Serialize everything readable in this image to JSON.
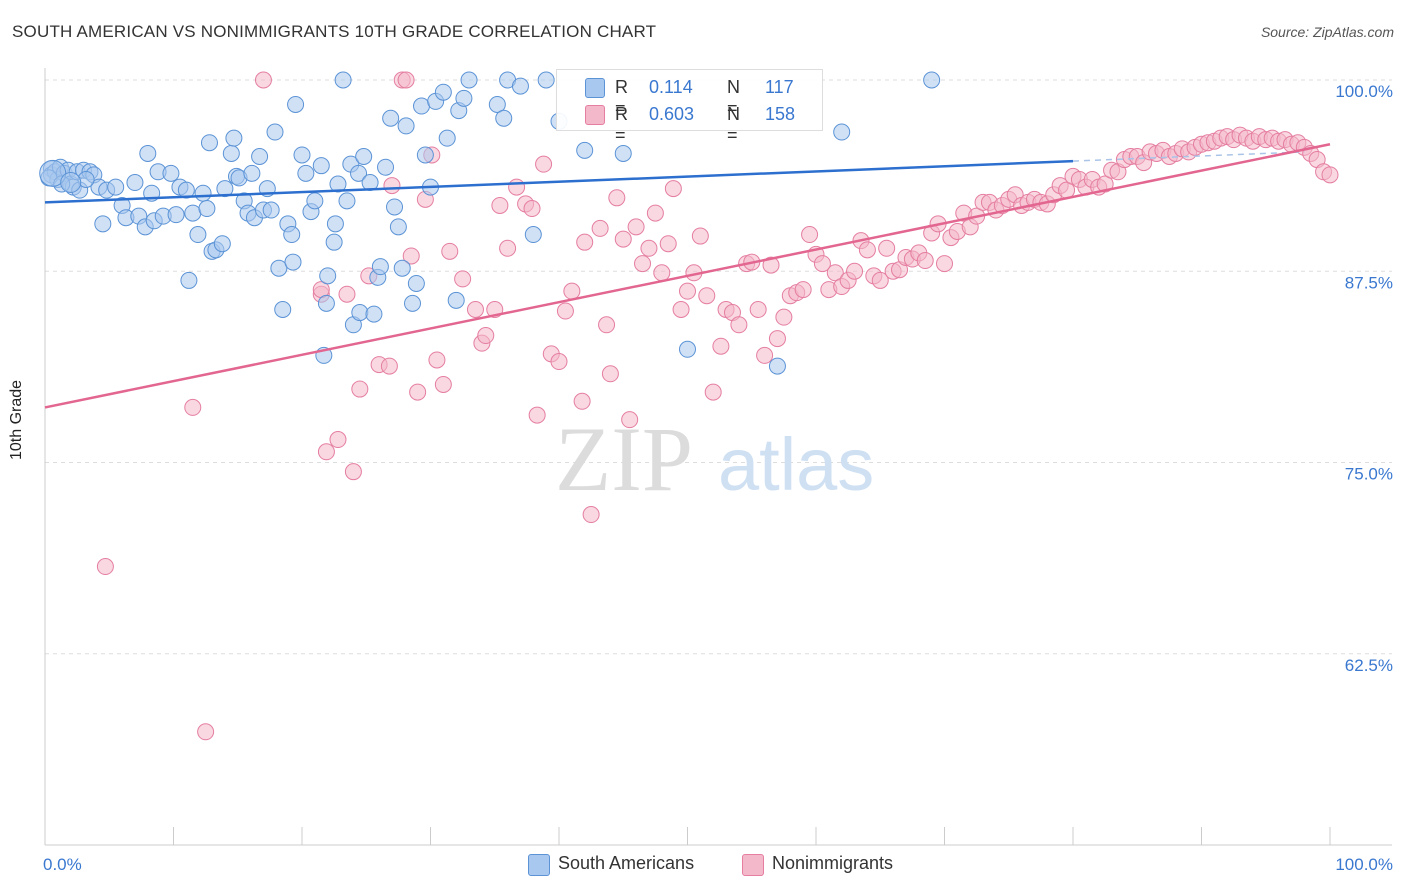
{
  "header": {
    "title": "SOUTH AMERICAN VS NONIMMIGRANTS 10TH GRADE CORRELATION CHART",
    "source": "Source: ZipAtlas.com"
  },
  "watermark": {
    "zip": "ZIP",
    "atlas": "atlas"
  },
  "legend": {
    "rows": [
      {
        "r_label": "R =",
        "r_value": "0.114",
        "n_label": "N =",
        "n_value": "117"
      },
      {
        "r_label": "R =",
        "r_value": "0.603",
        "n_label": "N =",
        "n_value": "158"
      }
    ]
  },
  "bottom_legend": {
    "series1": "South Americans",
    "series2": "Nonimmigrants"
  },
  "colors": {
    "blue_fill": "#a9c8ef",
    "blue_stroke": "#5b93d6",
    "blue_line": "#2c6fce",
    "pink_fill": "#f4b8cb",
    "pink_stroke": "#e57ea0",
    "pink_line": "#e2668f",
    "value_text": "#3a78d0",
    "grid": "#dddddd"
  },
  "chart_data": {
    "type": "scatter",
    "title": "SOUTH AMERICAN VS NONIMMIGRANTS 10TH GRADE CORRELATION CHART",
    "xlabel": "",
    "ylabel": "10th Grade",
    "xlim": [
      0,
      100
    ],
    "ylim": [
      50,
      100
    ],
    "x_tick_labels": [
      "0.0%",
      "100.0%"
    ],
    "y_ticks": [
      {
        "value": 100,
        "label": "100.0%"
      },
      {
        "value": 87.5,
        "label": "87.5%"
      },
      {
        "value": 75,
        "label": "75.0%"
      },
      {
        "value": 62.5,
        "label": "62.5%"
      }
    ],
    "grid": true,
    "legend_position": "top-center",
    "series": [
      {
        "name": "South Americans",
        "R": 0.114,
        "N": 117,
        "trend": {
          "x0": 0,
          "y0": 92.0,
          "x1": 80,
          "y1": 94.7,
          "dashed_to_x": 98,
          "dashed_to_y": 95.3
        },
        "points": [
          [
            0.5,
            94.2
          ],
          [
            0.5,
            93.8
          ],
          [
            0.8,
            94.0
          ],
          [
            1.0,
            93.5
          ],
          [
            1.2,
            94.3
          ],
          [
            1.5,
            93.9
          ],
          [
            1.8,
            94.1
          ],
          [
            2.0,
            93.2
          ],
          [
            2.2,
            93.0
          ],
          [
            2.5,
            94.0
          ],
          [
            3.0,
            94.1
          ],
          [
            3.5,
            94.0
          ],
          [
            3.8,
            93.8
          ],
          [
            4.2,
            93.0
          ],
          [
            4.5,
            90.6
          ],
          [
            4.8,
            92.8
          ],
          [
            5.5,
            93.0
          ],
          [
            6.0,
            91.8
          ],
          [
            6.3,
            91.0
          ],
          [
            7.0,
            93.3
          ],
          [
            7.3,
            91.1
          ],
          [
            7.8,
            90.4
          ],
          [
            8.0,
            95.2
          ],
          [
            8.3,
            92.6
          ],
          [
            8.5,
            90.8
          ],
          [
            8.8,
            94.0
          ],
          [
            9.2,
            91.1
          ],
          [
            9.8,
            93.9
          ],
          [
            10.2,
            91.2
          ],
          [
            10.5,
            93.0
          ],
          [
            11.0,
            92.8
          ],
          [
            11.2,
            86.9
          ],
          [
            11.5,
            91.3
          ],
          [
            11.9,
            89.9
          ],
          [
            12.3,
            92.6
          ],
          [
            12.6,
            91.6
          ],
          [
            12.8,
            95.9
          ],
          [
            13.0,
            88.8
          ],
          [
            13.3,
            88.9
          ],
          [
            13.8,
            89.3
          ],
          [
            14.0,
            92.9
          ],
          [
            14.5,
            95.2
          ],
          [
            14.7,
            96.2
          ],
          [
            14.9,
            93.7
          ],
          [
            15.1,
            93.6
          ],
          [
            15.5,
            92.1
          ],
          [
            15.8,
            91.3
          ],
          [
            16.1,
            93.9
          ],
          [
            16.3,
            91.0
          ],
          [
            16.7,
            95.0
          ],
          [
            17.0,
            91.5
          ],
          [
            17.3,
            92.9
          ],
          [
            17.6,
            91.5
          ],
          [
            17.9,
            96.6
          ],
          [
            18.2,
            87.7
          ],
          [
            18.5,
            85.0
          ],
          [
            18.9,
            90.6
          ],
          [
            19.2,
            89.9
          ],
          [
            19.3,
            88.1
          ],
          [
            19.5,
            98.4
          ],
          [
            20.0,
            95.1
          ],
          [
            20.3,
            93.9
          ],
          [
            20.7,
            91.4
          ],
          [
            21.0,
            92.1
          ],
          [
            21.5,
            94.4
          ],
          [
            21.7,
            82.0
          ],
          [
            21.9,
            85.4
          ],
          [
            22.0,
            87.2
          ],
          [
            22.5,
            89.4
          ],
          [
            22.6,
            90.6
          ],
          [
            22.8,
            93.2
          ],
          [
            23.2,
            100.0
          ],
          [
            23.5,
            92.1
          ],
          [
            23.8,
            94.5
          ],
          [
            24.0,
            84.0
          ],
          [
            24.4,
            93.9
          ],
          [
            24.5,
            84.8
          ],
          [
            24.8,
            95.0
          ],
          [
            25.3,
            93.3
          ],
          [
            25.6,
            84.7
          ],
          [
            25.9,
            87.1
          ],
          [
            26.1,
            87.8
          ],
          [
            26.5,
            94.3
          ],
          [
            26.9,
            97.5
          ],
          [
            27.2,
            91.7
          ],
          [
            27.5,
            90.4
          ],
          [
            27.8,
            87.7
          ],
          [
            28.1,
            97.0
          ],
          [
            28.6,
            85.4
          ],
          [
            28.9,
            86.7
          ],
          [
            29.3,
            98.3
          ],
          [
            29.6,
            95.1
          ],
          [
            30.0,
            93.0
          ],
          [
            30.4,
            98.6
          ],
          [
            31.0,
            99.2
          ],
          [
            31.3,
            96.2
          ],
          [
            32.0,
            85.6
          ],
          [
            32.2,
            98.0
          ],
          [
            32.6,
            98.8
          ],
          [
            33.0,
            100.0
          ],
          [
            35.2,
            98.4
          ],
          [
            35.7,
            97.5
          ],
          [
            36.0,
            100.0
          ],
          [
            37.0,
            99.6
          ],
          [
            38.0,
            89.9
          ],
          [
            39.0,
            100.0
          ],
          [
            40.0,
            97.3
          ],
          [
            42.0,
            95.4
          ],
          [
            45.0,
            95.2
          ],
          [
            50.0,
            82.4
          ],
          [
            57.0,
            81.3
          ],
          [
            62.0,
            96.6
          ],
          [
            69.0,
            100.0
          ],
          [
            0.3,
            93.6
          ],
          [
            1.3,
            93.2
          ],
          [
            2.7,
            92.8
          ],
          [
            3.2,
            93.5
          ]
        ]
      },
      {
        "name": "Nonimmigrants",
        "R": 0.603,
        "N": 158,
        "trend": {
          "x0": 0,
          "y0": 78.6,
          "x1": 100,
          "y1": 95.8
        },
        "points": [
          [
            11.5,
            78.6
          ],
          [
            4.7,
            68.2
          ],
          [
            12.5,
            57.4
          ],
          [
            17.0,
            100.0
          ],
          [
            21.5,
            86.0
          ],
          [
            21.5,
            86.3
          ],
          [
            21.9,
            75.7
          ],
          [
            22.8,
            76.5
          ],
          [
            23.5,
            86.0
          ],
          [
            24.5,
            79.8
          ],
          [
            24.0,
            74.4
          ],
          [
            25.2,
            87.2
          ],
          [
            26.0,
            81.4
          ],
          [
            26.8,
            81.3
          ],
          [
            27.0,
            93.1
          ],
          [
            27.8,
            100.0
          ],
          [
            28.1,
            100.0
          ],
          [
            28.5,
            88.5
          ],
          [
            29.0,
            79.6
          ],
          [
            29.6,
            92.2
          ],
          [
            30.1,
            95.1
          ],
          [
            30.5,
            81.7
          ],
          [
            31.0,
            80.1
          ],
          [
            31.5,
            88.8
          ],
          [
            32.5,
            87.0
          ],
          [
            33.5,
            85.0
          ],
          [
            34.0,
            82.8
          ],
          [
            34.3,
            83.3
          ],
          [
            35.0,
            85.0
          ],
          [
            35.4,
            91.8
          ],
          [
            36.0,
            89.0
          ],
          [
            36.7,
            93.0
          ],
          [
            37.4,
            91.9
          ],
          [
            37.9,
            91.6
          ],
          [
            38.3,
            78.1
          ],
          [
            38.8,
            94.5
          ],
          [
            39.4,
            82.1
          ],
          [
            40.0,
            81.6
          ],
          [
            40.5,
            84.9
          ],
          [
            41.0,
            86.2
          ],
          [
            41.8,
            79.0
          ],
          [
            42.0,
            89.4
          ],
          [
            42.5,
            71.6
          ],
          [
            43.2,
            90.3
          ],
          [
            43.7,
            84.0
          ],
          [
            44.0,
            80.8
          ],
          [
            44.5,
            92.3
          ],
          [
            45.0,
            89.6
          ],
          [
            45.5,
            77.8
          ],
          [
            46.0,
            90.4
          ],
          [
            46.5,
            88.0
          ],
          [
            47.0,
            89.0
          ],
          [
            47.5,
            91.3
          ],
          [
            48.0,
            87.4
          ],
          [
            48.5,
            89.3
          ],
          [
            48.9,
            92.9
          ],
          [
            49.5,
            85.0
          ],
          [
            50.0,
            86.2
          ],
          [
            50.5,
            87.4
          ],
          [
            51.0,
            89.8
          ],
          [
            51.5,
            85.9
          ],
          [
            52.0,
            79.6
          ],
          [
            52.6,
            82.6
          ],
          [
            53.0,
            85.0
          ],
          [
            53.5,
            84.8
          ],
          [
            54.0,
            84.0
          ],
          [
            54.6,
            88.0
          ],
          [
            55.0,
            88.1
          ],
          [
            55.5,
            85.0
          ],
          [
            56.0,
            82.0
          ],
          [
            56.5,
            87.9
          ],
          [
            57.0,
            83.1
          ],
          [
            57.5,
            84.5
          ],
          [
            58.0,
            85.9
          ],
          [
            58.5,
            86.1
          ],
          [
            59.0,
            86.3
          ],
          [
            59.5,
            89.9
          ],
          [
            60.0,
            88.6
          ],
          [
            60.5,
            88.0
          ],
          [
            61.0,
            86.3
          ],
          [
            61.5,
            87.4
          ],
          [
            62.0,
            86.5
          ],
          [
            62.5,
            86.9
          ],
          [
            63.0,
            87.5
          ],
          [
            63.5,
            89.5
          ],
          [
            64.0,
            88.9
          ],
          [
            64.5,
            87.2
          ],
          [
            65.0,
            86.9
          ],
          [
            65.5,
            89.0
          ],
          [
            66.0,
            87.5
          ],
          [
            66.5,
            87.6
          ],
          [
            67.0,
            88.4
          ],
          [
            67.5,
            88.3
          ],
          [
            68.0,
            88.7
          ],
          [
            68.5,
            88.2
          ],
          [
            69.0,
            90.0
          ],
          [
            69.5,
            90.6
          ],
          [
            70.0,
            88.0
          ],
          [
            70.5,
            89.7
          ],
          [
            71.0,
            90.1
          ],
          [
            71.5,
            91.3
          ],
          [
            72.0,
            90.4
          ],
          [
            72.5,
            91.1
          ],
          [
            73.0,
            92.0
          ],
          [
            73.5,
            92.0
          ],
          [
            74.0,
            91.5
          ],
          [
            74.5,
            91.8
          ],
          [
            75.0,
            92.2
          ],
          [
            75.5,
            92.5
          ],
          [
            76.0,
            91.8
          ],
          [
            76.5,
            92.0
          ],
          [
            77.0,
            92.2
          ],
          [
            77.5,
            92.0
          ],
          [
            78.0,
            91.9
          ],
          [
            78.5,
            92.5
          ],
          [
            79.0,
            93.1
          ],
          [
            79.5,
            92.8
          ],
          [
            80.0,
            93.7
          ],
          [
            80.5,
            93.5
          ],
          [
            81.0,
            93.0
          ],
          [
            81.5,
            93.5
          ],
          [
            82.0,
            93.0
          ],
          [
            82.5,
            93.2
          ],
          [
            83.0,
            94.1
          ],
          [
            83.5,
            94.0
          ],
          [
            84.0,
            94.8
          ],
          [
            84.5,
            95.0
          ],
          [
            85.0,
            95.0
          ],
          [
            85.5,
            94.6
          ],
          [
            86.0,
            95.3
          ],
          [
            86.5,
            95.2
          ],
          [
            87.0,
            95.4
          ],
          [
            87.5,
            95.0
          ],
          [
            88.0,
            95.2
          ],
          [
            88.5,
            95.5
          ],
          [
            89.0,
            95.3
          ],
          [
            89.5,
            95.6
          ],
          [
            90.0,
            95.8
          ],
          [
            90.5,
            95.9
          ],
          [
            91.0,
            96.0
          ],
          [
            91.5,
            96.2
          ],
          [
            92.0,
            96.3
          ],
          [
            92.5,
            96.1
          ],
          [
            93.0,
            96.4
          ],
          [
            93.5,
            96.2
          ],
          [
            94.0,
            96.0
          ],
          [
            94.5,
            96.3
          ],
          [
            95.0,
            96.1
          ],
          [
            95.5,
            96.2
          ],
          [
            96.0,
            96.0
          ],
          [
            96.5,
            96.1
          ],
          [
            97.0,
            95.8
          ],
          [
            97.5,
            95.9
          ],
          [
            98.0,
            95.6
          ],
          [
            98.5,
            95.2
          ],
          [
            99.0,
            94.8
          ],
          [
            99.5,
            94.0
          ],
          [
            100.0,
            93.8
          ]
        ]
      }
    ]
  }
}
